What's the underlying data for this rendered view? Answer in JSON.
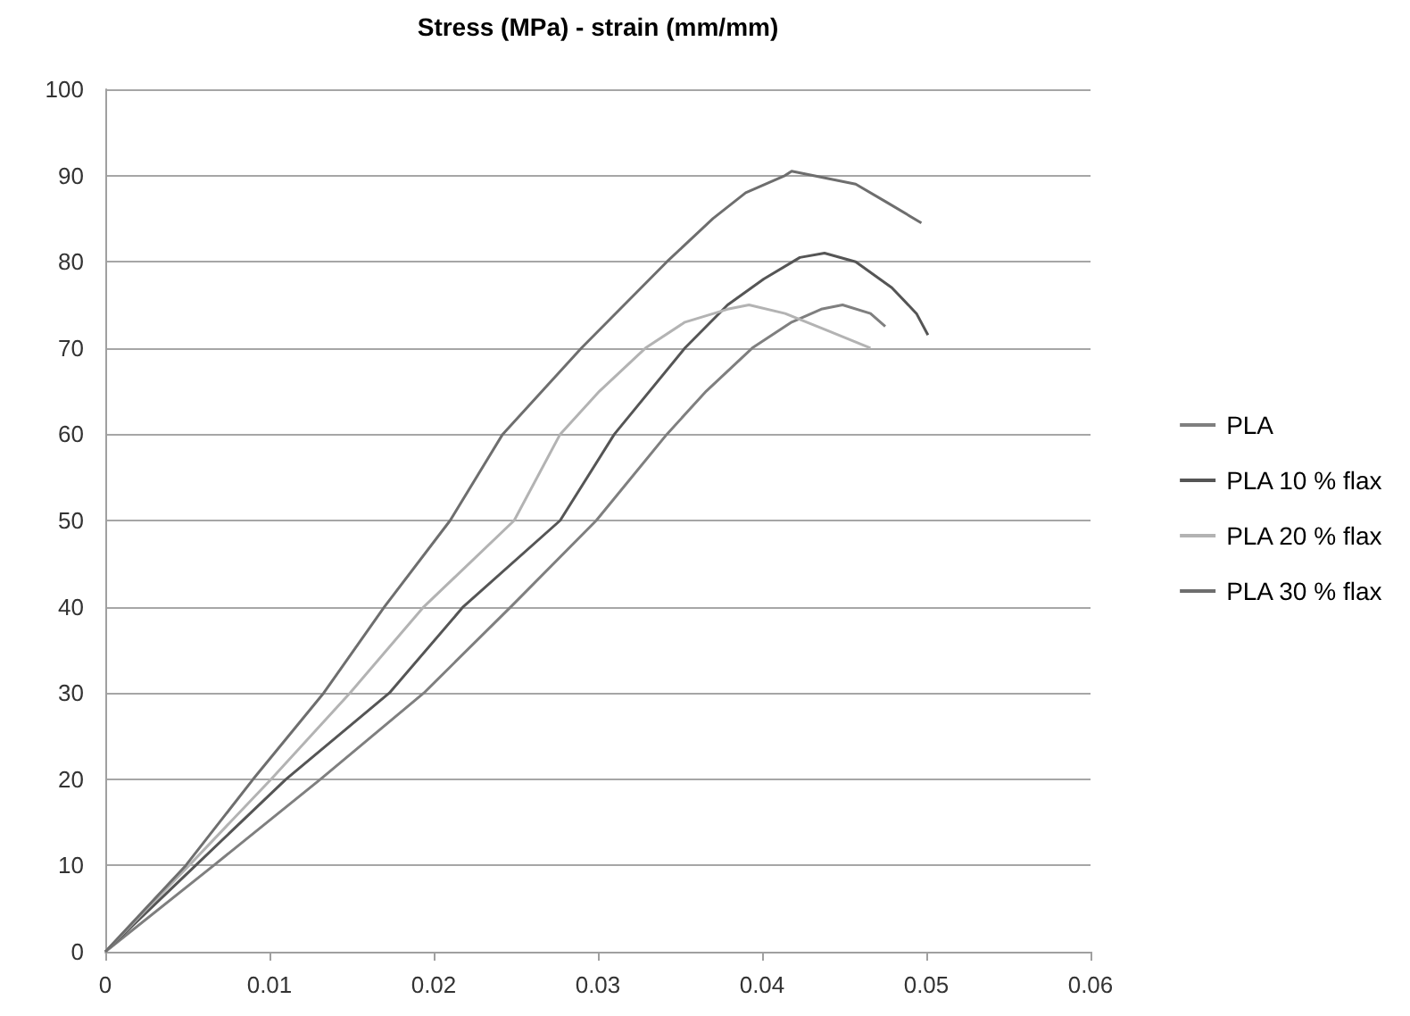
{
  "chart_data": {
    "type": "line",
    "title": "Stress (MPa) - strain (mm/mm)",
    "xlim": [
      0,
      0.06
    ],
    "xticks": [
      0,
      0.01,
      0.02,
      0.03,
      0.04,
      0.05,
      0.06
    ],
    "ylim": [
      0,
      100
    ],
    "yticks": [
      0,
      10,
      20,
      30,
      40,
      50,
      60,
      70,
      80,
      90,
      100
    ],
    "grid": "y",
    "legend": "right",
    "marker": "none",
    "line_style": "solid",
    "series": [
      {
        "name": "PLA",
        "color": "#7f7f7f",
        "x": [
          0,
          0.0066,
          0.0131,
          0.0194,
          0.0247,
          0.0299,
          0.0342,
          0.0366,
          0.0394,
          0.0418,
          0.0436,
          0.0449,
          0.0466,
          0.0475
        ],
        "values": [
          0,
          10,
          20,
          30,
          40,
          50,
          60,
          65,
          70,
          73,
          74.5,
          75,
          74,
          72.5
        ]
      },
      {
        "name": "PLA 10 % flax",
        "color": "#555555",
        "x": [
          0,
          0.0055,
          0.011,
          0.0173,
          0.0218,
          0.0277,
          0.031,
          0.0353,
          0.0379,
          0.0401,
          0.0423,
          0.0438,
          0.0457,
          0.0479,
          0.0494,
          0.0501
        ],
        "values": [
          0,
          10,
          20,
          30,
          40,
          50,
          60,
          70,
          75,
          78,
          80.5,
          81,
          80,
          77,
          74,
          71.5
        ]
      },
      {
        "name": "PLA 20 % flax",
        "color": "#b3b3b3",
        "x": [
          0,
          0.0051,
          0.0101,
          0.0149,
          0.0194,
          0.0249,
          0.0277,
          0.0301,
          0.0329,
          0.0353,
          0.0379,
          0.0392,
          0.0414,
          0.044,
          0.0466
        ],
        "values": [
          0,
          10,
          20,
          30,
          40,
          50,
          60,
          65,
          70,
          73,
          74.5,
          75,
          74,
          72,
          70
        ]
      },
      {
        "name": "PLA 30 % flax",
        "color": "#6e6e6e",
        "x": [
          0,
          0.0049,
          0.009,
          0.0133,
          0.017,
          0.021,
          0.0242,
          0.029,
          0.0342,
          0.037,
          0.039,
          0.0414,
          0.0418,
          0.0457,
          0.0475,
          0.0497
        ],
        "values": [
          0,
          10,
          20,
          30,
          40,
          50,
          60,
          70,
          80,
          85,
          88,
          90,
          90.5,
          89,
          87,
          84.5
        ]
      }
    ]
  }
}
